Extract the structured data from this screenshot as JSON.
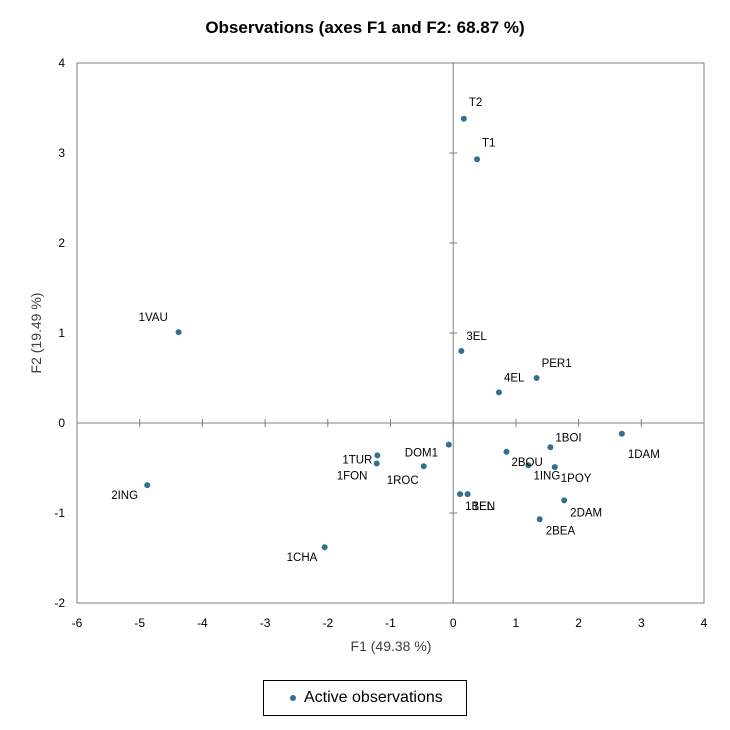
{
  "colors": {
    "marker": "#2E7290",
    "axis": "#808080",
    "frame": "#7F7F7F"
  },
  "legend": {
    "label": "Active observations"
  },
  "chart_data": {
    "type": "scatter",
    "title": "Observations (axes F1 and F2: 68.87 %)",
    "xlabel": "F1 (49.38 %)",
    "ylabel": "F2 (19.49 %)",
    "xlim": [
      -6,
      4
    ],
    "ylim": [
      -2,
      4
    ],
    "xticks": [
      -6,
      -5,
      -4,
      -3,
      -2,
      -1,
      0,
      1,
      2,
      3,
      4
    ],
    "yticks": [
      -2,
      -1,
      0,
      1,
      2,
      3,
      4
    ],
    "grid": false,
    "legend_position": "bottom",
    "series": [
      {
        "name": "Active observations",
        "points": [
          {
            "label": "T2",
            "x": 0.17,
            "y": 3.38
          },
          {
            "label": "T1",
            "x": 0.38,
            "y": 2.93
          },
          {
            "label": "1VAU",
            "x": -4.38,
            "y": 1.01
          },
          {
            "label": "3EL",
            "x": 0.13,
            "y": 0.8
          },
          {
            "label": "PER1",
            "x": 1.33,
            "y": 0.5
          },
          {
            "label": "4EL",
            "x": 0.73,
            "y": 0.34
          },
          {
            "label": "1DAM",
            "x": 2.69,
            "y": -0.12
          },
          {
            "label": "DOM1",
            "x": -0.07,
            "y": -0.24
          },
          {
            "label": "2BOU",
            "x": 0.85,
            "y": -0.32
          },
          {
            "label": "1BOI",
            "x": 1.55,
            "y": -0.27
          },
          {
            "label": "1TUR",
            "x": -1.21,
            "y": -0.36
          },
          {
            "label": "1FON",
            "x": -1.22,
            "y": -0.45
          },
          {
            "label": "1ROC",
            "x": -0.47,
            "y": -0.48
          },
          {
            "label": "1ING",
            "x": 1.2,
            "y": -0.47
          },
          {
            "label": "1POY",
            "x": 1.62,
            "y": -0.49
          },
          {
            "label": "2ING",
            "x": -4.88,
            "y": -0.69
          },
          {
            "label": "1BEN",
            "x": 0.11,
            "y": -0.79
          },
          {
            "label": "1EL",
            "x": 0.23,
            "y": -0.79
          },
          {
            "label": "2DAM",
            "x": 1.77,
            "y": -0.86
          },
          {
            "label": "2BEA",
            "x": 1.38,
            "y": -1.07
          },
          {
            "label": "1CHA",
            "x": -2.05,
            "y": -1.38
          }
        ]
      }
    ]
  }
}
